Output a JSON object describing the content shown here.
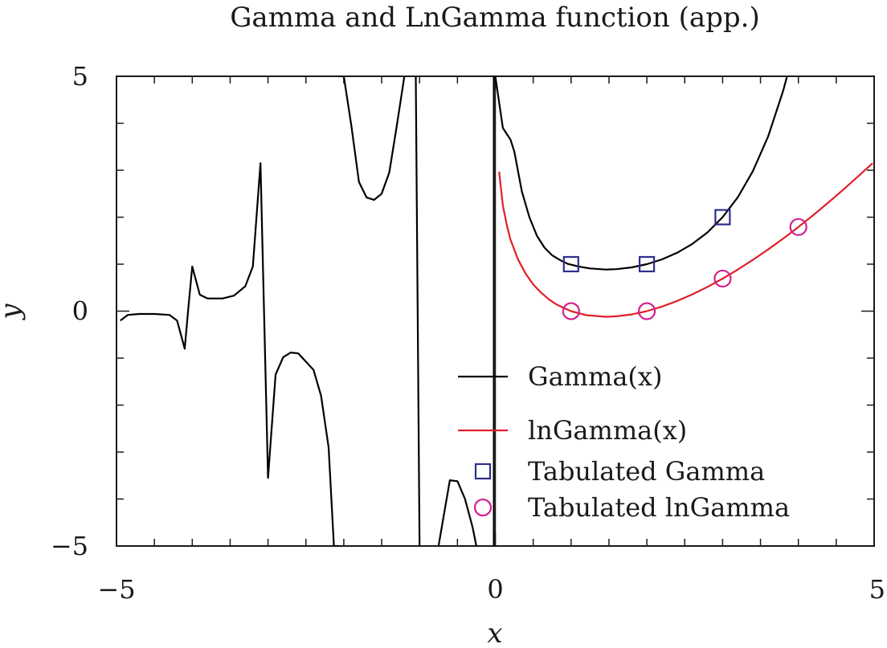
{
  "chart_data": {
    "type": "line",
    "title": "Gamma and LnGamma function (app.)",
    "xlabel": "x",
    "ylabel": "y",
    "xlim": [
      -5,
      5
    ],
    "ylim": [
      -5,
      5
    ],
    "xticks": [
      {
        "value": -5,
        "label": "−5"
      },
      {
        "value": 0,
        "label": "0"
      },
      {
        "value": 5,
        "label": "5"
      }
    ],
    "yticks": [
      {
        "value": 5,
        "label": "5"
      },
      {
        "value": 0,
        "label": "0"
      },
      {
        "value": -5,
        "label": "−5"
      }
    ],
    "grid": false,
    "legend_position": "bottom-right",
    "colors": {
      "gamma": "#000000",
      "lngamma": "#e0202a",
      "tab_gamma": "#2e2e8c",
      "tab_lngamma": "#d4208c"
    },
    "series": [
      {
        "name": "Gamma(x)",
        "kind": "line",
        "segments": [
          [
            [
              -4.95,
              -0.2
            ],
            [
              -4.85,
              -0.08
            ],
            [
              -4.7,
              -0.06
            ],
            [
              -4.5,
              -0.06
            ],
            [
              -4.3,
              -0.08
            ],
            [
              -4.2,
              -0.2
            ],
            [
              -4.1,
              -0.8
            ],
            [
              -4.05,
              0.1
            ],
            [
              -4.0,
              0.95
            ],
            [
              -3.9,
              0.35
            ],
            [
              -3.8,
              0.27
            ],
            [
              -3.6,
              0.27
            ],
            [
              -3.45,
              0.33
            ],
            [
              -3.3,
              0.53
            ],
            [
              -3.2,
              0.95
            ],
            [
              -3.1,
              3.15
            ],
            [
              -3.0,
              -3.55
            ],
            [
              -2.9,
              -1.35
            ],
            [
              -2.8,
              -0.98
            ],
            [
              -2.7,
              -0.88
            ],
            [
              -2.6,
              -0.9
            ],
            [
              -2.4,
              -1.25
            ],
            [
              -2.3,
              -1.8
            ],
            [
              -2.2,
              -2.9
            ],
            [
              -2.13,
              -5
            ],
            [
              -2.07,
              -5
            ]
          ],
          [
            [
              -2.07,
              5
            ],
            [
              -2.0,
              5
            ],
            [
              -1.9,
              3.95
            ],
            [
              -1.8,
              2.75
            ],
            [
              -1.7,
              2.42
            ],
            [
              -1.6,
              2.37
            ],
            [
              -1.5,
              2.5
            ],
            [
              -1.4,
              2.95
            ],
            [
              -1.3,
              3.95
            ],
            [
              -1.2,
              5
            ]
          ],
          [
            [
              -1.05,
              5
            ],
            [
              -1.0,
              -5
            ]
          ],
          [
            [
              -0.75,
              -5
            ],
            [
              -0.6,
              -3.6
            ],
            [
              -0.5,
              -3.62
            ],
            [
              -0.4,
              -4.0
            ],
            [
              -0.3,
              -4.6
            ],
            [
              -0.25,
              -5
            ]
          ],
          [
            [
              -0.02,
              -5
            ],
            [
              -0.02,
              5
            ]
          ],
          [
            [
              0.0,
              5
            ],
            [
              0.1,
              3.9
            ],
            [
              0.2,
              3.65
            ],
            [
              0.25,
              3.4
            ],
            [
              0.35,
              2.55
            ],
            [
              0.45,
              2.0
            ],
            [
              0.55,
              1.6
            ],
            [
              0.65,
              1.35
            ],
            [
              0.75,
              1.19
            ],
            [
              0.85,
              1.09
            ],
            [
              0.95,
              1.01
            ],
            [
              1.1,
              0.95
            ],
            [
              1.25,
              0.91
            ],
            [
              1.46,
              0.885
            ],
            [
              1.6,
              0.894
            ],
            [
              1.8,
              0.931
            ],
            [
              2.0,
              1.0
            ],
            [
              2.2,
              1.102
            ],
            [
              2.4,
              1.242
            ],
            [
              2.6,
              1.43
            ],
            [
              2.8,
              1.676
            ],
            [
              3.0,
              2.0
            ],
            [
              3.2,
              2.424
            ],
            [
              3.4,
              2.981
            ],
            [
              3.6,
              3.717
            ],
            [
              3.8,
              4.694
            ],
            [
              3.85,
              5
            ]
          ]
        ]
      },
      {
        "name": "lnGamma(x)",
        "kind": "line",
        "x": [
          0.05,
          0.1,
          0.15,
          0.2,
          0.3,
          0.4,
          0.5,
          0.6,
          0.7,
          0.8,
          0.9,
          1.0,
          1.2,
          1.46,
          1.6,
          1.8,
          2.0,
          2.2,
          2.4,
          2.6,
          2.8,
          3.0,
          3.2,
          3.4,
          3.6,
          3.8,
          4.0,
          4.2,
          4.4,
          4.6,
          4.8,
          4.98
        ],
        "y": [
          2.97,
          2.25,
          1.85,
          1.52,
          1.1,
          0.8,
          0.57,
          0.4,
          0.26,
          0.15,
          0.07,
          0.0,
          -0.085,
          -0.12,
          -0.11,
          -0.07,
          0.0,
          0.097,
          0.217,
          0.358,
          0.517,
          0.693,
          0.885,
          1.092,
          1.313,
          1.546,
          1.792,
          2.05,
          2.318,
          2.597,
          2.886,
          3.15
        ]
      },
      {
        "name": "Tabulated Gamma",
        "kind": "marker",
        "marker": "square",
        "x": [
          1,
          2,
          3
        ],
        "y": [
          1,
          1,
          2
        ]
      },
      {
        "name": "Tabulated lnGamma",
        "kind": "marker",
        "marker": "circle",
        "x": [
          1,
          2,
          3,
          4
        ],
        "y": [
          0,
          0,
          0.693,
          1.792
        ]
      }
    ]
  }
}
